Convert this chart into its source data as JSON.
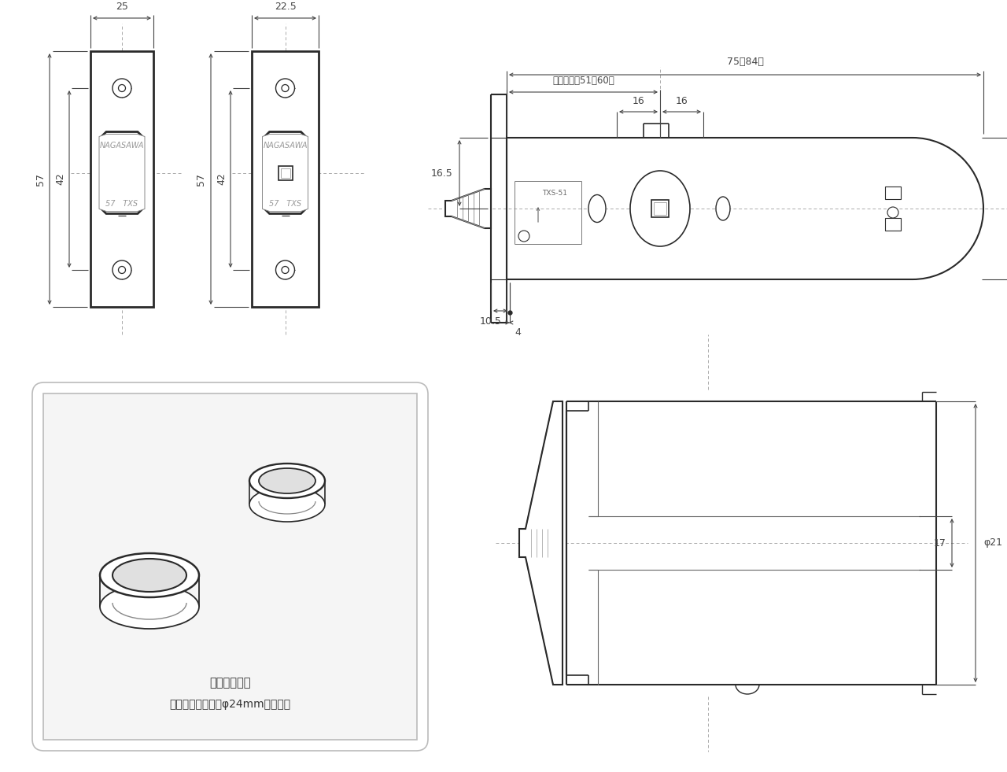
{
  "bg_color": "#ffffff",
  "line_color": "#2a2a2a",
  "dim_color": "#444444",
  "text_color": "#333333",
  "gray_text": "#888888",
  "dim_25": "25",
  "dim_22_5": "22.5",
  "dim_57": "57",
  "dim_42": "42",
  "dim_75_84": "75（84）",
  "dim_backset": "バックセツ51（60）",
  "dim_16": "16",
  "dim_16_5": "16.5",
  "dim_phi21": "φ21",
  "dim_10_5": "10.5",
  "dim_4": "4",
  "dim_17": "17",
  "label_nagasawa": "NAGASAWA",
  "label_57txs": "57 TXS",
  "label_txs51": "TXS-51",
  "caption1": "調整用リング",
  "caption2": "扇側面の穴の径がφ24mm時に使用"
}
